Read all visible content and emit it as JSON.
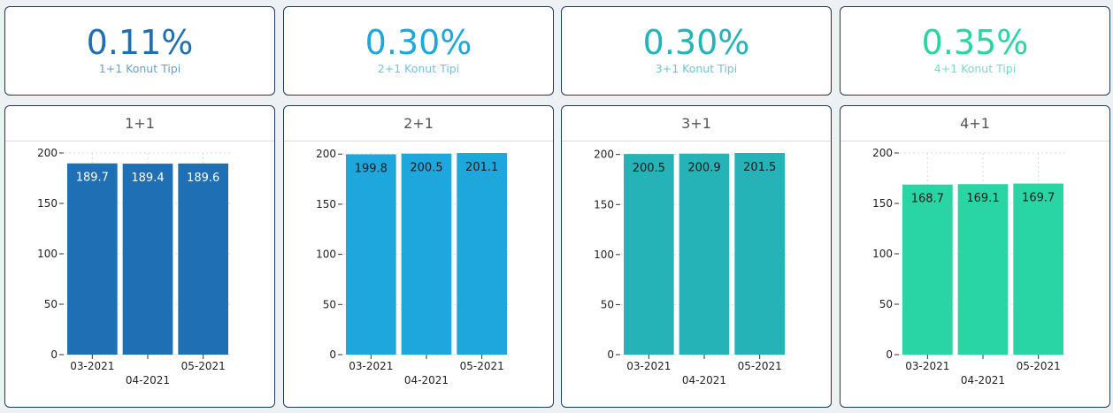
{
  "kpis": [
    {
      "value": "0.11%",
      "label": "1+1 Konut Tipi",
      "color": "#1f6fb5",
      "label_color": "#6a9fcf"
    },
    {
      "value": "0.30%",
      "label": "2+1 Konut Tipi",
      "color": "#1ea7dc",
      "label_color": "#6fc3e6"
    },
    {
      "value": "0.30%",
      "label": "3+1 Konut Tipi",
      "color": "#26b3b8",
      "label_color": "#6cc8cb"
    },
    {
      "value": "0.35%",
      "label": "4+1 Konut Tipi",
      "color": "#2ad5a5",
      "label_color": "#72e0c0"
    }
  ],
  "chart_data": [
    {
      "type": "bar",
      "title": "1+1",
      "categories": [
        "03-2021",
        "04-2021",
        "05-2021"
      ],
      "values": [
        189.7,
        189.4,
        189.6
      ],
      "value_labels": [
        "189.7",
        "189.4",
        "189.6"
      ],
      "yticks": [
        "0",
        "50",
        "100",
        "150",
        "200"
      ],
      "ylim": [
        0,
        200
      ],
      "color": "#1f6fb5",
      "label_color": "#ffffff"
    },
    {
      "type": "bar",
      "title": "2+1",
      "categories": [
        "03-2021",
        "04-2021",
        "05-2021"
      ],
      "values": [
        199.8,
        200.5,
        201.1
      ],
      "value_labels": [
        "199.8",
        "200.5",
        "201.1"
      ],
      "yticks": [
        "0",
        "50",
        "100",
        "150",
        "200"
      ],
      "ylim": [
        0,
        201.1
      ],
      "color": "#1ea7dc",
      "label_color": "#1a1a1a"
    },
    {
      "type": "bar",
      "title": "3+1",
      "categories": [
        "03-2021",
        "04-2021",
        "05-2021"
      ],
      "values": [
        200.5,
        200.9,
        201.5
      ],
      "value_labels": [
        "200.5",
        "200.9",
        "201.5"
      ],
      "yticks": [
        "0",
        "50",
        "100",
        "150",
        "200"
      ],
      "ylim": [
        0,
        201.5
      ],
      "color": "#26b3b8",
      "label_color": "#1a1a1a"
    },
    {
      "type": "bar",
      "title": "4+1",
      "categories": [
        "03-2021",
        "04-2021",
        "05-2021"
      ],
      "values": [
        168.7,
        169.1,
        169.7
      ],
      "value_labels": [
        "168.7",
        "169.1",
        "169.7"
      ],
      "yticks": [
        "0",
        "50",
        "100",
        "150",
        "200"
      ],
      "ylim": [
        0,
        200
      ],
      "color": "#2ad5a5",
      "label_color": "#1a1a1a"
    }
  ]
}
